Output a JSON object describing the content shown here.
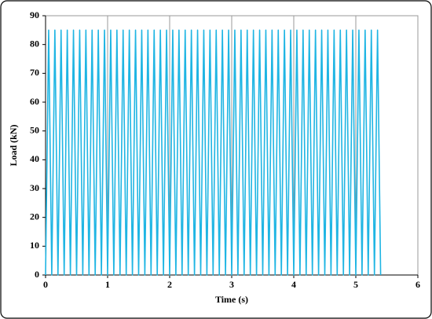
{
  "chart_data": {
    "type": "line",
    "x_label": "Time (s)",
    "y_label": "Load (kN)",
    "x": [
      0,
      0.05,
      0.1,
      0.15,
      0.2,
      0.25,
      0.3,
      0.35,
      0.4,
      0.45,
      0.5,
      0.55,
      0.6,
      0.65,
      0.7,
      0.75,
      0.8,
      0.85,
      0.9,
      0.95,
      1,
      1.05,
      1.1,
      1.15,
      1.2,
      1.25,
      1.3,
      1.35,
      1.4,
      1.45,
      1.5,
      1.55,
      1.6,
      1.65,
      1.7,
      1.75,
      1.8,
      1.85,
      1.9,
      1.95,
      2,
      2.05,
      2.1,
      2.15,
      2.2,
      2.25,
      2.3,
      2.35,
      2.4,
      2.45,
      2.5,
      2.55,
      2.6,
      2.65,
      2.7,
      2.75,
      2.8,
      2.85,
      2.9,
      2.95,
      3,
      3.05,
      3.1,
      3.15,
      3.2,
      3.25,
      3.3,
      3.35,
      3.4,
      3.45,
      3.5,
      3.55,
      3.6,
      3.65,
      3.7,
      3.75,
      3.8,
      3.85,
      3.9,
      3.95,
      4,
      4.05,
      4.1,
      4.15,
      4.2,
      4.25,
      4.3,
      4.35,
      4.4,
      4.45,
      4.5,
      4.55,
      4.6,
      4.65,
      4.7,
      4.75,
      4.8,
      4.85,
      4.9,
      4.95,
      5,
      5.05,
      5.1,
      5.15,
      5.2,
      5.25,
      5.3,
      5.35,
      5.4
    ],
    "values": [
      0,
      85,
      0,
      85,
      0,
      85,
      0,
      85,
      0,
      85,
      0,
      85,
      0,
      85,
      0,
      85,
      0,
      85,
      0,
      85,
      0,
      85,
      0,
      85,
      0,
      85,
      0,
      85,
      0,
      85,
      0,
      85,
      0,
      85,
      0,
      85,
      0,
      85,
      0,
      85,
      0,
      85,
      0,
      85,
      0,
      85,
      0,
      85,
      0,
      85,
      0,
      85,
      0,
      85,
      0,
      85,
      0,
      85,
      0,
      85,
      0,
      85,
      0,
      85,
      0,
      85,
      0,
      85,
      0,
      85,
      0,
      85,
      0,
      85,
      0,
      85,
      0,
      85,
      0,
      85,
      0,
      85,
      0,
      85,
      0,
      85,
      0,
      85,
      0,
      85,
      0,
      85,
      0,
      85,
      0,
      85,
      0,
      85,
      0,
      85,
      0,
      85,
      0,
      85,
      0,
      85,
      0,
      85,
      0
    ],
    "color": "#1fb5e3",
    "xlim": [
      0,
      6
    ],
    "xticks": [
      0,
      1,
      2,
      3,
      4,
      5,
      6
    ],
    "ylim": [
      0,
      90
    ],
    "yticks": [
      0,
      10,
      20,
      30,
      40,
      50,
      60,
      70,
      80,
      90
    ],
    "grid": "x"
  }
}
